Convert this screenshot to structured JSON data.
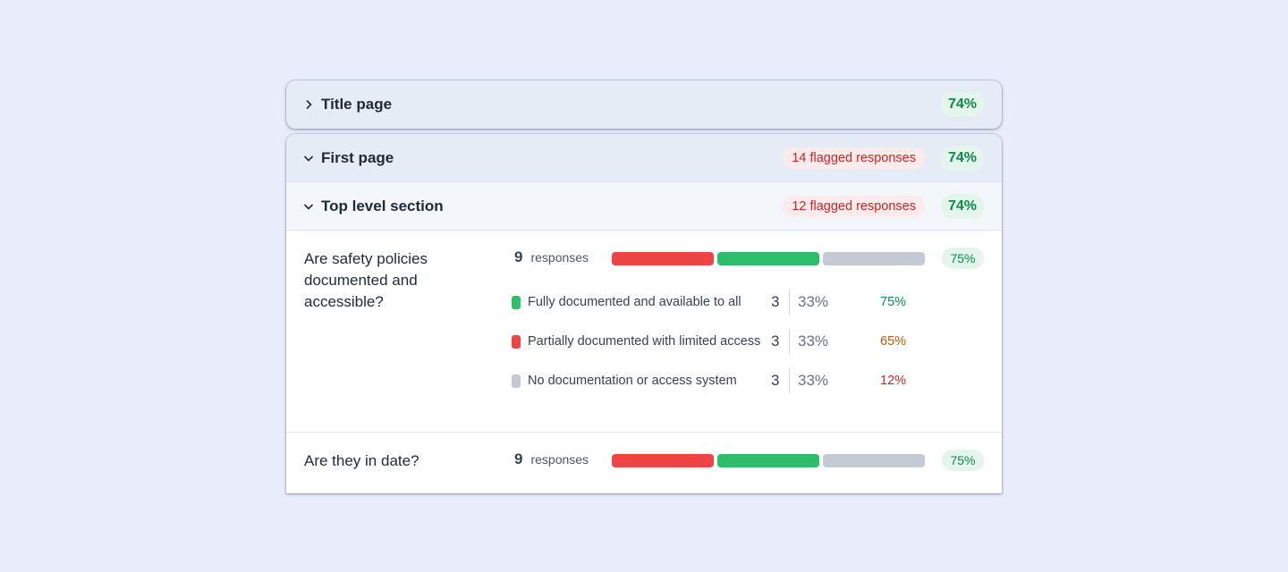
{
  "title_page": {
    "title": "Title page",
    "score": "74%"
  },
  "first_page": {
    "title": "First page",
    "flagged": "14 flagged responses",
    "score": "74%",
    "section": {
      "title": "Top level section",
      "flagged": "12 flagged responses",
      "score": "74%",
      "questions": [
        {
          "text": "Are safety policies documented and accessible?",
          "responses_count": "9",
          "responses_label": "responses",
          "score": "75%",
          "options": [
            {
              "label": "Fully documented and available to all",
              "count": "3",
              "percent": "33%",
              "score": "75%",
              "color": "#2ebd6b",
              "score_color": "#0a8a4a"
            },
            {
              "label": "Partially documented with limited access",
              "count": "3",
              "percent": "33%",
              "score": "65%",
              "color": "#ef4444",
              "score_color": "#c2590a"
            },
            {
              "label": "No documentation or access system",
              "count": "3",
              "percent": "33%",
              "score": "12%",
              "color": "#c3cad4",
              "score_color": "#c62828"
            }
          ]
        },
        {
          "text": "Are they in date?",
          "responses_count": "9",
          "responses_label": "responses",
          "score": "75%"
        }
      ]
    }
  },
  "colors": {
    "red": "#ef4444",
    "green": "#2ebd6b",
    "grey": "#c3cad4"
  }
}
